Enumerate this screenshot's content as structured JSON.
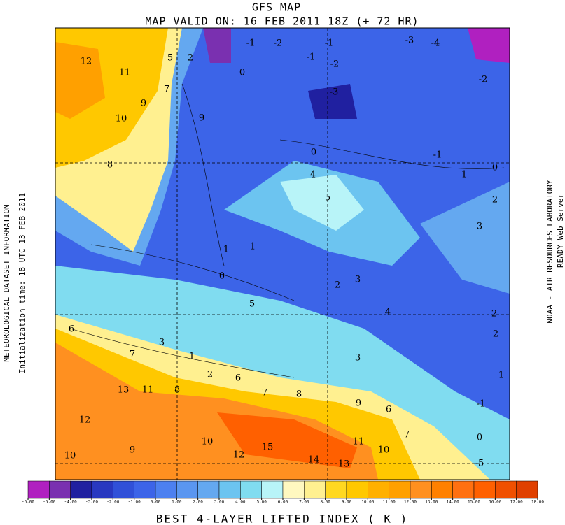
{
  "title": "GFS MAP",
  "subtitle": "MAP VALID ON: 16 FEB 2011 18Z (+ 72 HR)",
  "left_labels": [
    "METEOROLOGICAL DATASET INFORMATION",
    "Initialization time: 18 UTC 13 FEB 2011"
  ],
  "right_labels": [
    "NOAA - AIR RESOURCES LABORATORY",
    "READY Web Server"
  ],
  "contour_labels": [
    "12",
    "11",
    "9",
    "10",
    "8",
    "5",
    "2",
    "7",
    "9",
    "-1",
    "-2",
    "-1",
    "-3",
    "-4",
    "-2",
    "0",
    "-1",
    "-2",
    "-3",
    "0",
    "-1",
    "0",
    "4",
    "5",
    "2",
    "3",
    "1",
    "1",
    "0",
    "2",
    "3",
    "4",
    "2",
    "2",
    "3",
    "1",
    "1",
    "6",
    "5",
    "7",
    "13",
    "11",
    "8",
    "12",
    "10",
    "9",
    "10",
    "12",
    "15",
    "14",
    "13",
    "11",
    "10",
    "7",
    "6",
    "9",
    "8",
    "7",
    "6",
    "3",
    "2",
    "1",
    "-1",
    "0",
    "-5"
  ],
  "colorbar": {
    "label": "BEST 4-LAYER LIFTED INDEX (   K   )",
    "ticks": [
      {
        "value": -6,
        "label": "-6.00"
      },
      {
        "value": -5,
        "label": "-5.00"
      },
      {
        "value": -4,
        "label": "-4.00"
      },
      {
        "value": -3,
        "label": "-3.00"
      },
      {
        "value": -2,
        "label": "-2.00"
      },
      {
        "value": -1,
        "label": "-1.00"
      },
      {
        "value": 0,
        "label": "0.00"
      },
      {
        "value": 1,
        "label": "1.00"
      },
      {
        "value": 2,
        "label": "2.00"
      },
      {
        "value": 3,
        "label": "3.00"
      },
      {
        "value": 4,
        "label": "4.00"
      },
      {
        "value": 5,
        "label": "5.00"
      },
      {
        "value": 6,
        "label": "6.00"
      },
      {
        "value": 7,
        "label": "7.00"
      },
      {
        "value": 8,
        "label": "8.00"
      },
      {
        "value": 9,
        "label": "9.00"
      },
      {
        "value": 10,
        "label": "10.00"
      },
      {
        "value": 11,
        "label": "11.00"
      },
      {
        "value": 12,
        "label": "12.00"
      },
      {
        "value": 13,
        "label": "13.00"
      },
      {
        "value": 14,
        "label": "14.00"
      },
      {
        "value": 15,
        "label": "15.00"
      },
      {
        "value": 16,
        "label": "16.00"
      },
      {
        "value": 17,
        "label": "17.00"
      },
      {
        "value": 18,
        "label": "18.00"
      }
    ],
    "colors": [
      "#b020c0",
      "#7a30b0",
      "#2020a0",
      "#2838c0",
      "#3050d8",
      "#3c64e8",
      "#4c80f0",
      "#5a96f0",
      "#64a8f0",
      "#6cc4f0",
      "#80dcf0",
      "#b8f4f8",
      "#fff8c0",
      "#fff090",
      "#ffd820",
      "#ffc800",
      "#ffb000",
      "#ffa000",
      "#ff9020",
      "#ff8000",
      "#ff7010",
      "#ff6000",
      "#f05000",
      "#e04000"
    ]
  }
}
